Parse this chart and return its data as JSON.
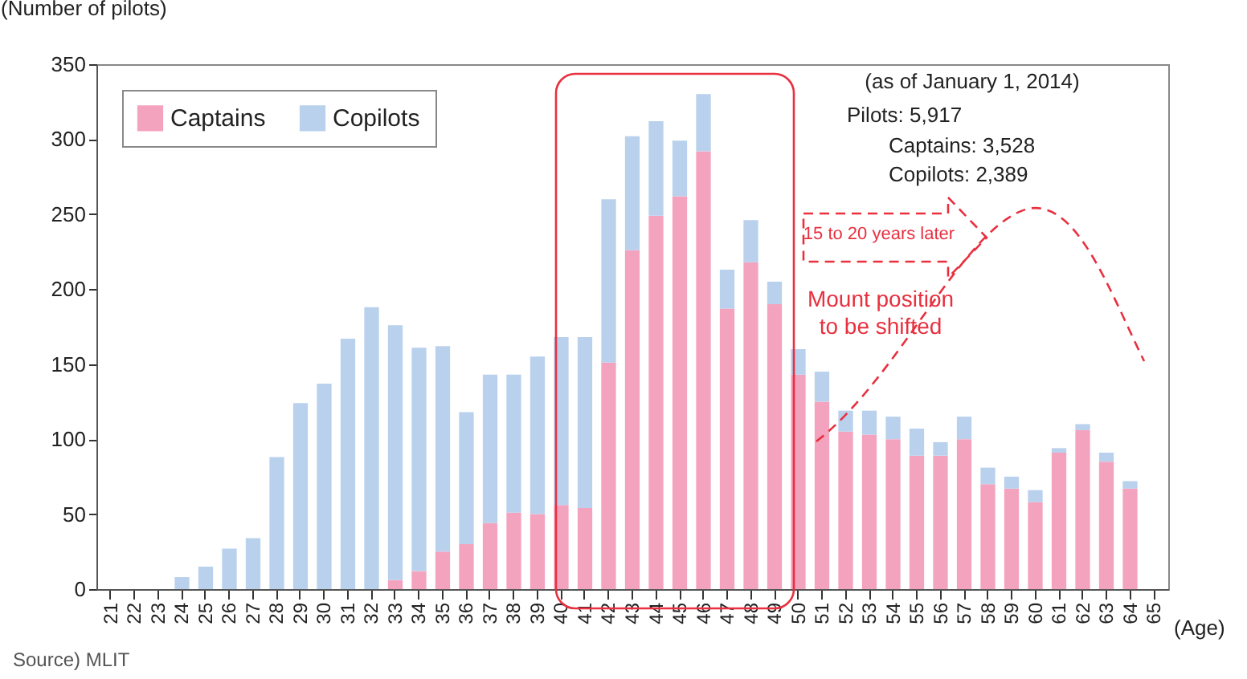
{
  "chart_data": {
    "type": "bar",
    "stacked": true,
    "xlabel": "(Age)",
    "ylabel": "(Number of pilots)",
    "categories": [
      "21",
      "22",
      "23",
      "24",
      "25",
      "26",
      "27",
      "28",
      "29",
      "30",
      "31",
      "32",
      "33",
      "34",
      "35",
      "36",
      "37",
      "38",
      "39",
      "40",
      "41",
      "42",
      "43",
      "44",
      "45",
      "46",
      "47",
      "48",
      "49",
      "50",
      "51",
      "52",
      "53",
      "54",
      "55",
      "56",
      "57",
      "58",
      "59",
      "60",
      "61",
      "62",
      "63",
      "64",
      "65"
    ],
    "series": [
      {
        "name": "Captains",
        "color": "#f4a3bf",
        "values": [
          0,
          0,
          0,
          0,
          0,
          0,
          0,
          0,
          0,
          0,
          0,
          0,
          6,
          12,
          25,
          30,
          44,
          51,
          50,
          56,
          54,
          151,
          226,
          249,
          262,
          292,
          187,
          218,
          190,
          143,
          125,
          105,
          103,
          100,
          89,
          89,
          100,
          70,
          67,
          58,
          91,
          106,
          85,
          67,
          0
        ]
      },
      {
        "name": "Copilots",
        "color": "#b9d1ed",
        "values": [
          0,
          0,
          0,
          8,
          15,
          27,
          34,
          88,
          124,
          137,
          167,
          188,
          170,
          149,
          137,
          88,
          99,
          92,
          105,
          112,
          114,
          109,
          76,
          63,
          37,
          38,
          26,
          28,
          15,
          17,
          20,
          14,
          16,
          15,
          18,
          9,
          15,
          11,
          8,
          8,
          3,
          4,
          6,
          5,
          0
        ]
      }
    ],
    "ylim": [
      0,
      350
    ],
    "yticks": [
      0,
      50,
      100,
      150,
      200,
      250,
      300,
      350
    ],
    "legend": "top left",
    "grid": false,
    "annotations": [
      "(as of January 1, 2014)",
      "Pilots: 5,917",
      "Captains: 3,528",
      "Copilots: 2,389",
      "15 to 20 years later",
      "Mount position to be shifted",
      "Source) MLIT"
    ]
  }
}
